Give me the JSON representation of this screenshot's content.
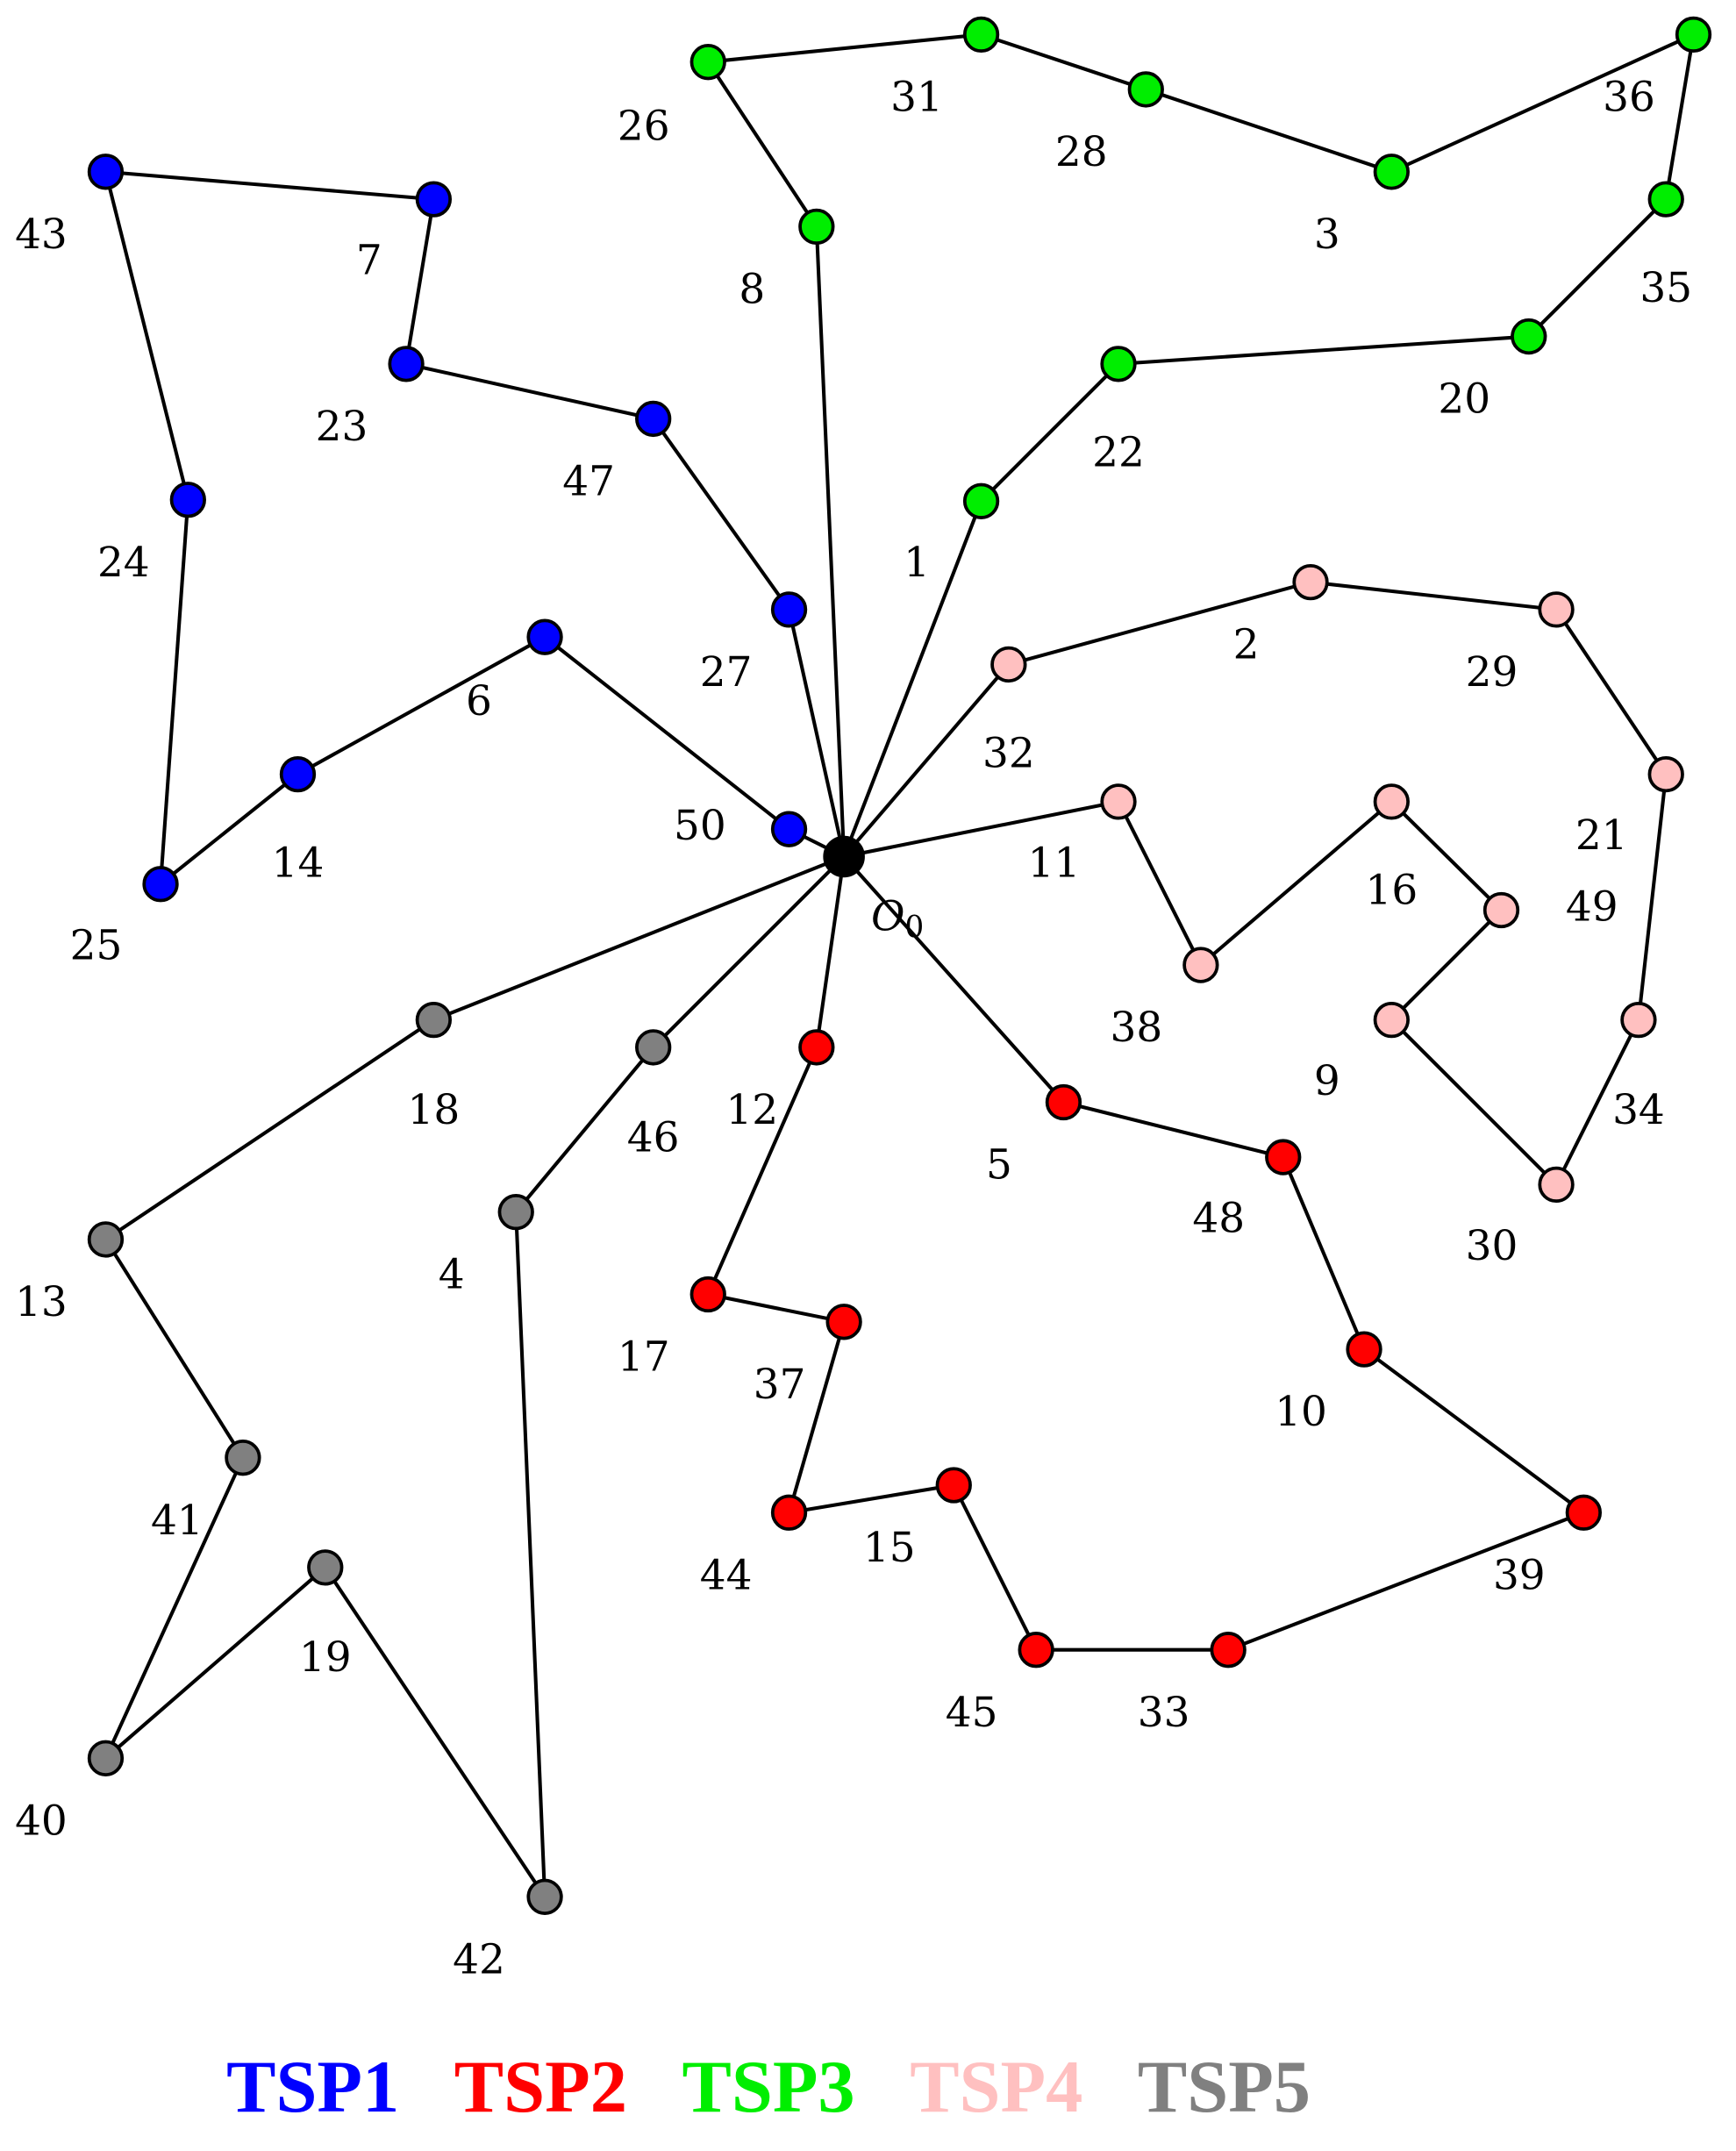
{
  "depot": {
    "label": "O",
    "subscript": "0",
    "color": "#000000"
  },
  "routes": [
    {
      "name": "TSP1",
      "color": "#0000ff",
      "nodes": [
        "50",
        "6",
        "14",
        "25",
        "24",
        "43",
        "7",
        "23",
        "47",
        "27"
      ]
    },
    {
      "name": "TSP2",
      "color": "#ff0000",
      "nodes": [
        "5",
        "48",
        "10",
        "39",
        "33",
        "45",
        "15",
        "44",
        "37",
        "17",
        "12"
      ]
    },
    {
      "name": "TSP3",
      "color": "#00ee00",
      "nodes": [
        "1",
        "22",
        "20",
        "35",
        "36",
        "3",
        "28",
        "31",
        "26",
        "8"
      ]
    },
    {
      "name": "TSP4",
      "color": "#ffc0c0",
      "nodes": [
        "32",
        "2",
        "29",
        "21",
        "34",
        "30",
        "9",
        "49",
        "16",
        "38",
        "11"
      ]
    },
    {
      "name": "TSP5",
      "color": "#808080",
      "nodes": [
        "46",
        "4",
        "42",
        "19",
        "40",
        "41",
        "13",
        "18"
      ]
    }
  ],
  "legend": [
    "TSP1",
    "TSP2",
    "TSP3",
    "TSP4",
    "TSP5"
  ]
}
